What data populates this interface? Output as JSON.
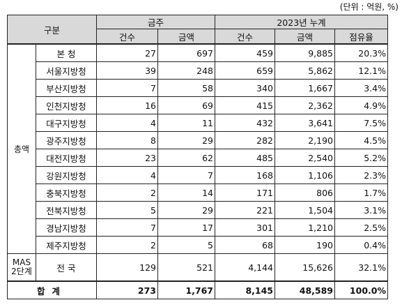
{
  "unit_note": "(단위 : 억원, %)",
  "header": {
    "category": "구분",
    "group_month": "금주",
    "group_year": "2023년 누계",
    "count": "건수",
    "amount": "금액",
    "share": "점유율"
  },
  "category_total": "총액",
  "rows": [
    {
      "name": "본  청",
      "wk_count": "27",
      "wk_amount": "697",
      "yr_count": "459",
      "yr_amount": "9,885",
      "share": "20.3%"
    },
    {
      "name": "서울지방청",
      "wk_count": "39",
      "wk_amount": "248",
      "yr_count": "659",
      "yr_amount": "5,862",
      "share": "12.1%"
    },
    {
      "name": "부산지방청",
      "wk_count": "7",
      "wk_amount": "58",
      "yr_count": "340",
      "yr_amount": "1,667",
      "share": "3.4%"
    },
    {
      "name": "인천지방청",
      "wk_count": "16",
      "wk_amount": "69",
      "yr_count": "415",
      "yr_amount": "2,362",
      "share": "4.9%"
    },
    {
      "name": "대구지방청",
      "wk_count": "4",
      "wk_amount": "11",
      "yr_count": "432",
      "yr_amount": "3,641",
      "share": "7.5%"
    },
    {
      "name": "광주지방청",
      "wk_count": "8",
      "wk_amount": "29",
      "yr_count": "282",
      "yr_amount": "2,190",
      "share": "4.5%"
    },
    {
      "name": "대전지방청",
      "wk_count": "23",
      "wk_amount": "62",
      "yr_count": "485",
      "yr_amount": "2,540",
      "share": "5.2%"
    },
    {
      "name": "강원지방청",
      "wk_count": "4",
      "wk_amount": "7",
      "yr_count": "168",
      "yr_amount": "1,106",
      "share": "2.3%"
    },
    {
      "name": "충북지방청",
      "wk_count": "2",
      "wk_amount": "14",
      "yr_count": "171",
      "yr_amount": "806",
      "share": "1.7%"
    },
    {
      "name": "전북지방청",
      "wk_count": "5",
      "wk_amount": "29",
      "yr_count": "221",
      "yr_amount": "1,504",
      "share": "3.1%"
    },
    {
      "name": "경남지방청",
      "wk_count": "7",
      "wk_amount": "17",
      "yr_count": "301",
      "yr_amount": "1,210",
      "share": "2.5%"
    },
    {
      "name": "제주지방청",
      "wk_count": "2",
      "wk_amount": "5",
      "yr_count": "68",
      "yr_amount": "190",
      "share": "0.4%"
    }
  ],
  "mas": {
    "category_line1": "MAS",
    "category_line2": "2단계",
    "name": "전  국",
    "wk_count": "129",
    "wk_amount": "521",
    "yr_count": "4,144",
    "yr_amount": "15,626",
    "share": "32.1%"
  },
  "total": {
    "label": "합계",
    "wk_count": "273",
    "wk_amount": "1,767",
    "yr_count": "8,145",
    "yr_amount": "48,589",
    "share": "100.0%"
  }
}
